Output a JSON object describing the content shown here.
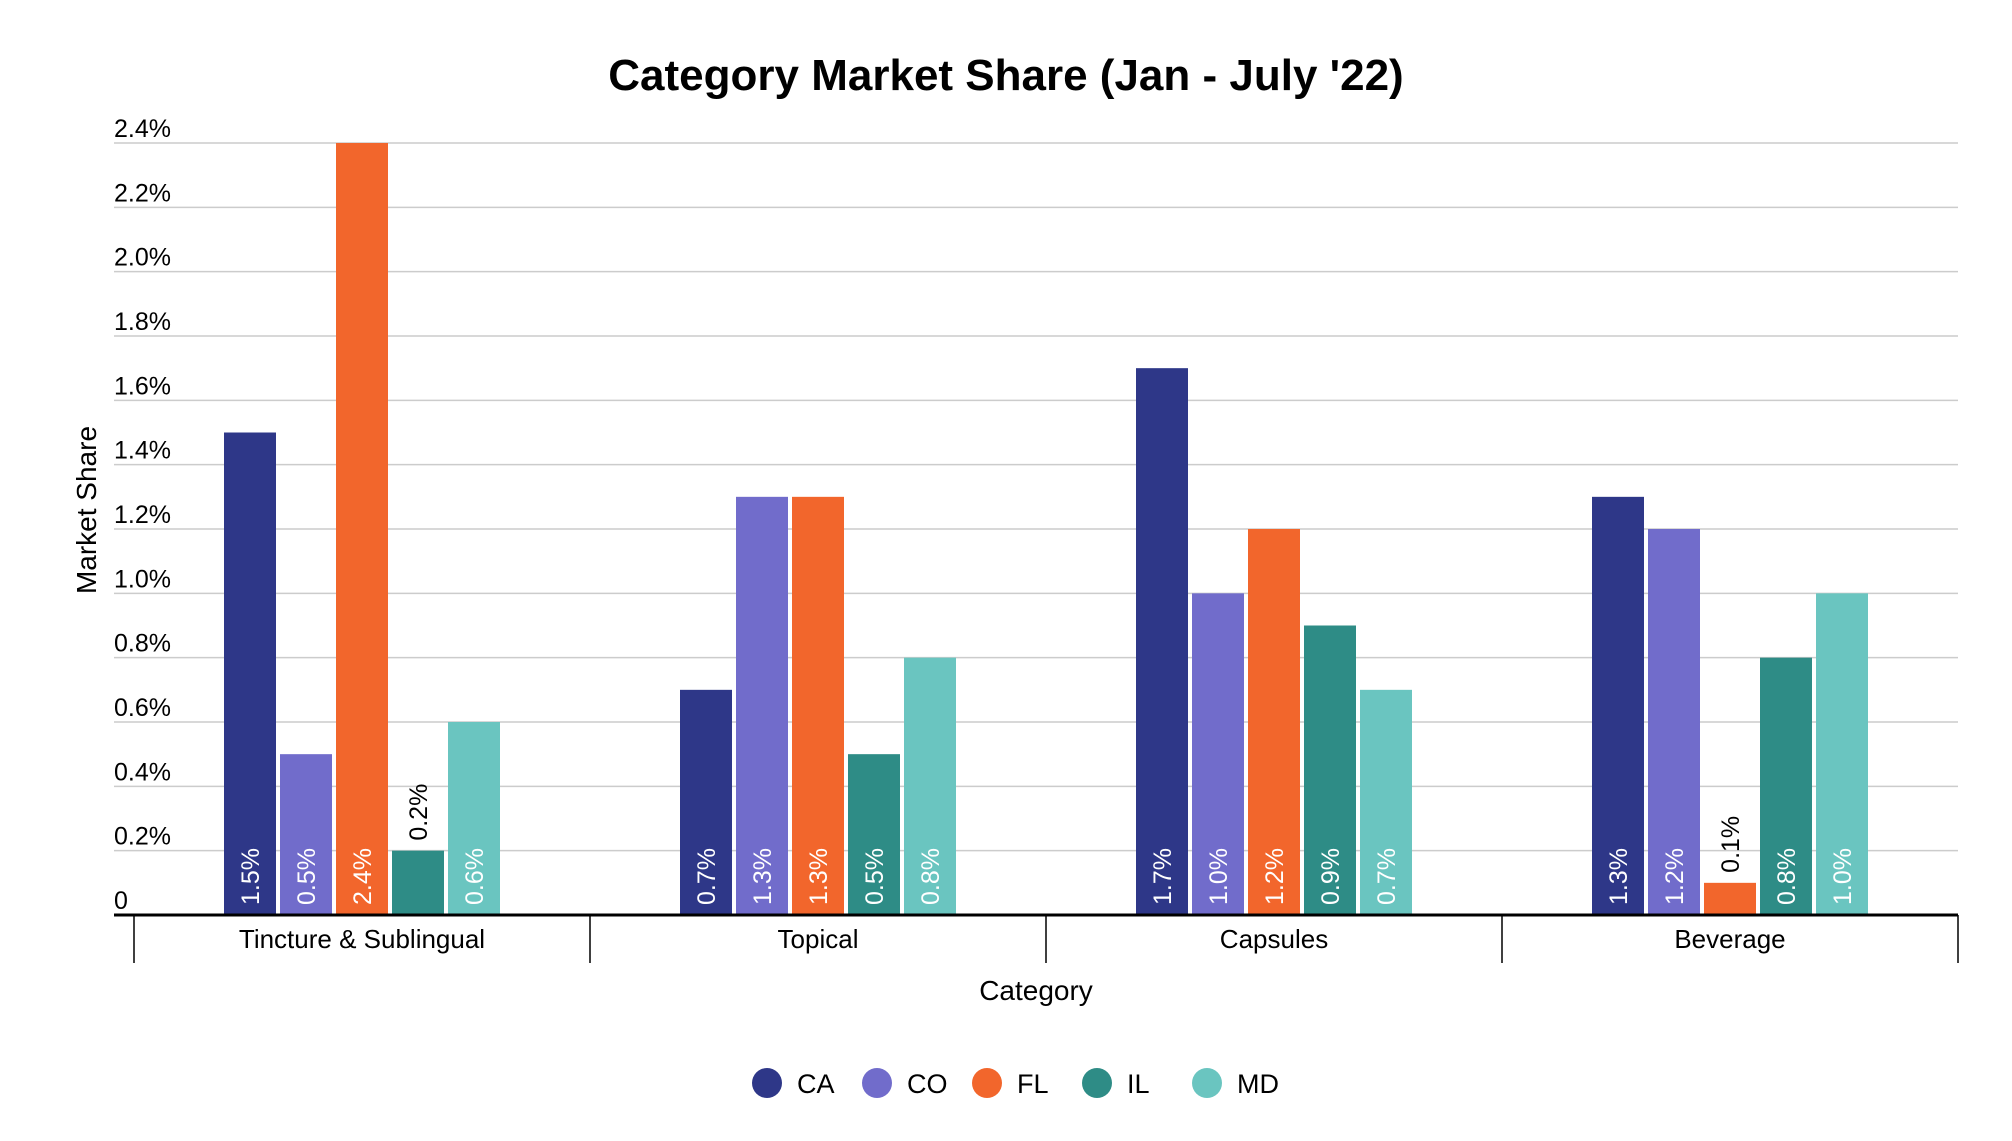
{
  "chart_data": {
    "type": "bar",
    "title": "Category Market Share (Jan - July '22)",
    "xlabel": "Category",
    "ylabel": "Market Share",
    "categories": [
      "Tincture & Sublingual",
      "Topical",
      "Capsules",
      "Beverage"
    ],
    "series": [
      {
        "name": "CA",
        "color": "#2e3788",
        "values": [
          1.5,
          0.7,
          1.7,
          1.3
        ],
        "labels": [
          "1.5%",
          "0.7%",
          "1.7%",
          "1.3%"
        ]
      },
      {
        "name": "CO",
        "color": "#716ccb",
        "values": [
          0.5,
          1.3,
          1.0,
          1.2
        ],
        "labels": [
          "0.5%",
          "1.3%",
          "1.0%",
          "1.2%"
        ]
      },
      {
        "name": "FL",
        "color": "#f2662c",
        "values": [
          2.4,
          1.3,
          1.2,
          0.1
        ],
        "labels": [
          "2.4%",
          "1.3%",
          "1.2%",
          "0.1%"
        ]
      },
      {
        "name": "IL",
        "color": "#2e8c86",
        "values": [
          0.2,
          0.5,
          0.9,
          0.8
        ],
        "labels": [
          "0.2%",
          "0.5%",
          "0.9%",
          "0.8%"
        ]
      },
      {
        "name": "MD",
        "color": "#6ac5c0",
        "values": [
          0.6,
          0.8,
          0.7,
          1.0
        ],
        "labels": [
          "0.6%",
          "0.8%",
          "0.7%",
          "1.0%"
        ]
      }
    ],
    "ylim": [
      0,
      2.4
    ],
    "yticks": [
      0,
      0.2,
      0.4,
      0.6,
      0.8,
      1.0,
      1.2,
      1.4,
      1.6,
      1.8,
      2.0,
      2.2,
      2.4
    ],
    "ytick_labels": [
      "0",
      "0.2%",
      "0.4%",
      "0.6%",
      "0.8%",
      "1.0%",
      "1.2%",
      "1.4%",
      "1.6%",
      "1.8%",
      "2.0%",
      "2.2%",
      "2.4%"
    ],
    "grid": true,
    "gridline_color": "#cccccc",
    "legend_position": "bottom"
  }
}
